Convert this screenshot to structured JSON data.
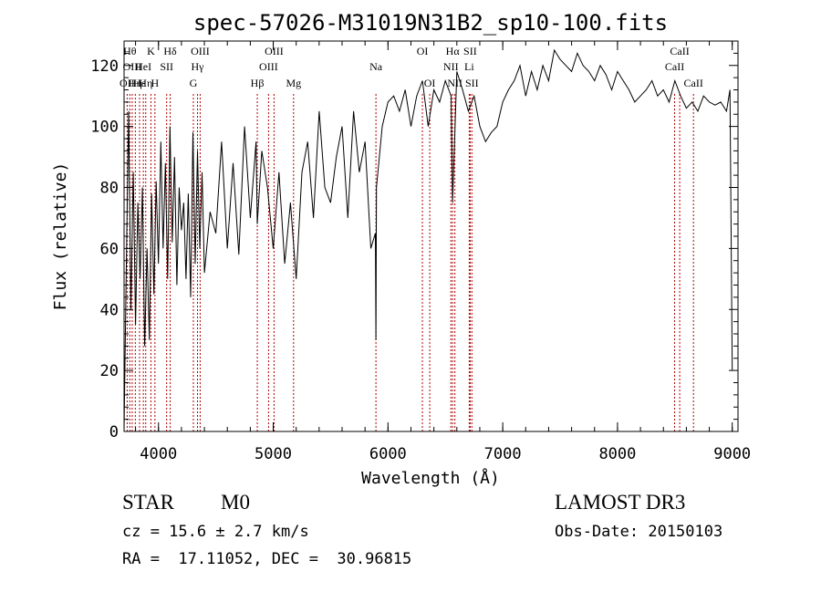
{
  "chart_data": {
    "type": "line",
    "title": "spec-57026-M31019N31B2_sp10-100.fits",
    "xlabel": "Wavelength (Å)",
    "ylabel": "Flux (relative)",
    "xlim": [
      3700,
      9050
    ],
    "ylim": [
      0,
      128
    ],
    "x_ticks": [
      "4000",
      "5000",
      "6000",
      "7000",
      "8000",
      "9000"
    ],
    "y_ticks": [
      "0",
      "20",
      "40",
      "60",
      "80",
      "100",
      "120"
    ],
    "grid": false,
    "series": [
      {
        "x": [
          3700,
          3720,
          3740,
          3760,
          3780,
          3800,
          3820,
          3840,
          3860,
          3880,
          3900,
          3920,
          3940,
          3960,
          3980,
          4000,
          4020,
          4040,
          4060,
          4080,
          4100,
          4120,
          4140,
          4160,
          4180,
          4200,
          4220,
          4240,
          4260,
          4280,
          4300,
          4320,
          4340,
          4360,
          4380,
          4400,
          4450,
          4500,
          4550,
          4600,
          4650,
          4700,
          4750,
          4800,
          4850,
          4861,
          4900,
          4950,
          5000,
          5050,
          5100,
          5150,
          5200,
          5250,
          5300,
          5350,
          5400,
          5450,
          5500,
          5550,
          5600,
          5650,
          5700,
          5750,
          5800,
          5850,
          5890,
          5895,
          5900,
          5950,
          6000,
          6050,
          6100,
          6150,
          6200,
          6250,
          6300,
          6350,
          6400,
          6450,
          6500,
          6550,
          6563,
          6600,
          6650,
          6700,
          6750,
          6800,
          6850,
          6900,
          6950,
          7000,
          7050,
          7100,
          7150,
          7200,
          7250,
          7300,
          7350,
          7400,
          7450,
          7500,
          7550,
          7600,
          7650,
          7700,
          7750,
          7800,
          7850,
          7900,
          7950,
          8000,
          8050,
          8100,
          8150,
          8200,
          8250,
          8300,
          8350,
          8400,
          8450,
          8500,
          8550,
          8600,
          8650,
          8700,
          8750,
          8800,
          8850,
          8900,
          8950,
          8980,
          9000
        ],
        "values": [
          0,
          55,
          105,
          40,
          85,
          35,
          75,
          50,
          80,
          28,
          60,
          30,
          78,
          45,
          82,
          55,
          95,
          60,
          88,
          50,
          100,
          62,
          90,
          48,
          80,
          66,
          75,
          50,
          78,
          44,
          98,
          55,
          92,
          60,
          85,
          52,
          72,
          65,
          95,
          60,
          88,
          58,
          100,
          70,
          95,
          68,
          92,
          80,
          60,
          85,
          55,
          75,
          50,
          85,
          95,
          70,
          105,
          80,
          75,
          90,
          100,
          70,
          105,
          85,
          95,
          60,
          65,
          30,
          80,
          100,
          108,
          110,
          105,
          112,
          100,
          110,
          115,
          100,
          112,
          108,
          115,
          110,
          75,
          118,
          112,
          105,
          110,
          100,
          95,
          98,
          100,
          108,
          112,
          115,
          120,
          110,
          118,
          112,
          120,
          115,
          125,
          122,
          120,
          118,
          124,
          120,
          118,
          115,
          120,
          117,
          112,
          118,
          115,
          112,
          108,
          110,
          112,
          115,
          110,
          112,
          108,
          115,
          110,
          106,
          108,
          105,
          110,
          108,
          107,
          108,
          105,
          112,
          20
        ]
      }
    ],
    "line_markers": [
      {
        "wavelength": 3727,
        "label": "OII",
        "row": 3
      },
      {
        "wavelength": 3750,
        "label": "Hθ",
        "row": 1
      },
      {
        "wavelength": 3771,
        "label": "OIII",
        "row": 2
      },
      {
        "wavelength": 3798,
        "label": "Hη",
        "row": 3
      },
      {
        "wavelength": 3835,
        "label": "Hε",
        "row": 3
      },
      {
        "wavelength": 3868,
        "label": "HeI",
        "row": 2
      },
      {
        "wavelength": 3889,
        "label": "Hη",
        "row": 3
      },
      {
        "wavelength": 3934,
        "label": "K",
        "row": 1
      },
      {
        "wavelength": 3969,
        "label": "H",
        "row": 3
      },
      {
        "wavelength": 4071,
        "label": "SII",
        "row": 2
      },
      {
        "wavelength": 4102,
        "label": "Hδ",
        "row": 1
      },
      {
        "wavelength": 4304,
        "label": "G",
        "row": 3
      },
      {
        "wavelength": 4340,
        "label": "Hγ",
        "row": 2
      },
      {
        "wavelength": 4363,
        "label": "OIII",
        "row": 1
      },
      {
        "wavelength": 4861,
        "label": "Hβ",
        "row": 3
      },
      {
        "wavelength": 4959,
        "label": "OIII",
        "row": 2
      },
      {
        "wavelength": 5007,
        "label": "OIII",
        "row": 1
      },
      {
        "wavelength": 5177,
        "label": "Mg",
        "row": 3
      },
      {
        "wavelength": 5895,
        "label": "Na",
        "row": 2
      },
      {
        "wavelength": 6300,
        "label": "OI",
        "row": 1
      },
      {
        "wavelength": 6364,
        "label": "OI",
        "row": 3
      },
      {
        "wavelength": 6548,
        "label": "NII",
        "row": 2
      },
      {
        "wavelength": 6563,
        "label": "Hα",
        "row": 1
      },
      {
        "wavelength": 6583,
        "label": "NII",
        "row": 3
      },
      {
        "wavelength": 6708,
        "label": "Li",
        "row": 2
      },
      {
        "wavelength": 6716,
        "label": "SII",
        "row": 1
      },
      {
        "wavelength": 6731,
        "label": "SII",
        "row": 3
      },
      {
        "wavelength": 8498,
        "label": "CaII",
        "row": 2
      },
      {
        "wavelength": 8542,
        "label": "CaII",
        "row": 1
      },
      {
        "wavelength": 8662,
        "label": "CaII",
        "row": 3
      }
    ]
  },
  "info": {
    "class_label": "STAR",
    "subclass_label": "M0",
    "redshift_line": "cz = 15.6 ± 2.7 km/s",
    "coords_line": "RA =  17.11052, DEC =  30.96815",
    "survey_label": "LAMOST DR3",
    "obs_date_line": "Obs-Date: 20150103"
  }
}
